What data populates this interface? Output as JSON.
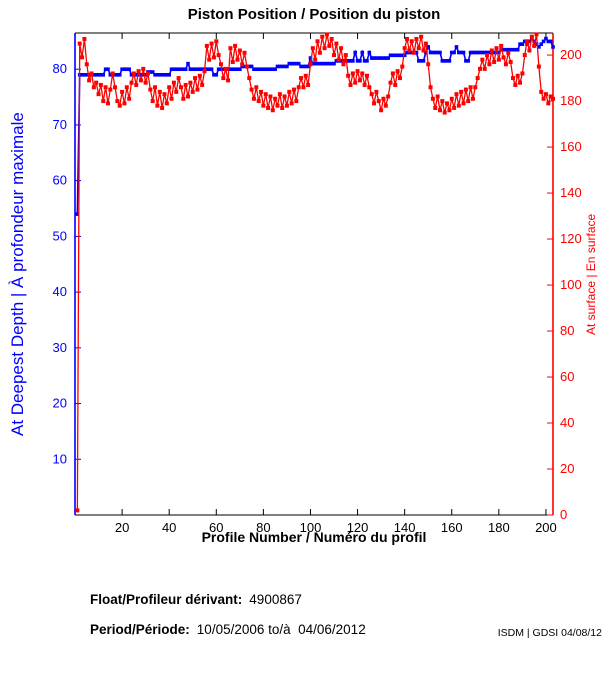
{
  "chart_data": {
    "type": "line",
    "title": "Piston Position / Position du piston",
    "x_axis": {
      "label": "Profile Number / Numéro du profil",
      "min": 0,
      "max": 203,
      "ticks": [
        20,
        40,
        60,
        80,
        100,
        120,
        140,
        160,
        180,
        200
      ]
    },
    "left_axis": {
      "label": "At Deepest Depth | À profondeur maximale",
      "color": "#0000ff",
      "min": 0,
      "max": 86.5,
      "ticks": [
        10,
        20,
        30,
        40,
        50,
        60,
        70,
        80
      ]
    },
    "right_axis": {
      "label": "At surface | En surface",
      "color": "#ff0000",
      "min": 0,
      "max": 209.6,
      "ticks": [
        0,
        20,
        40,
        60,
        80,
        100,
        120,
        140,
        160,
        180,
        200
      ]
    },
    "x_profiles": {
      "start": 1,
      "step": 1,
      "count": 203
    },
    "grid": false,
    "legend": "none",
    "series": [
      {
        "name": "At Deepest Depth | À profondeur maximale",
        "axis": "left",
        "color": "#0000ff",
        "line_width": 1.6,
        "marker_size": 3.6,
        "values": [
          54,
          79,
          79,
          79,
          79,
          79,
          79,
          79,
          79,
          79,
          79,
          79,
          80,
          80,
          79,
          79,
          79,
          79,
          79,
          80,
          80,
          80,
          80,
          79,
          79,
          79,
          79,
          79,
          79,
          79,
          79.5,
          79.5,
          79.5,
          79,
          79,
          79,
          79,
          79,
          79,
          79,
          80,
          80,
          80,
          80,
          80,
          80,
          80,
          81,
          80,
          80,
          80,
          80,
          80,
          80,
          80,
          80,
          80,
          80,
          79,
          79,
          80,
          80,
          80,
          80,
          80,
          80,
          80,
          80,
          80,
          80,
          80.5,
          80.5,
          80.5,
          80.5,
          80.5,
          80,
          80,
          80,
          80,
          80,
          80,
          80,
          80,
          80,
          80,
          80.5,
          80.5,
          80.5,
          80.5,
          80.5,
          81,
          81,
          81,
          81,
          81,
          80.5,
          80.5,
          80.5,
          80.5,
          82,
          81,
          81,
          81,
          81,
          81,
          81,
          81,
          81,
          81,
          81,
          81.5,
          81.5,
          81.5,
          81.5,
          81.5,
          81.5,
          81.5,
          81.5,
          83,
          81.5,
          81.5,
          83,
          81.5,
          81.5,
          83,
          82,
          82,
          82,
          82,
          82,
          82,
          82,
          82,
          82.5,
          82.5,
          82.5,
          82.5,
          82.5,
          82.5,
          82.5,
          83,
          83,
          83,
          83,
          83,
          81.5,
          81.5,
          81.5,
          83,
          84,
          83,
          83,
          83,
          83,
          83,
          81.5,
          81.5,
          81.5,
          81.5,
          83,
          83,
          84,
          83,
          83,
          83,
          81.5,
          81.5,
          83,
          83,
          83,
          83,
          83,
          83,
          83,
          83,
          83,
          83,
          83,
          83,
          83,
          83.5,
          83.5,
          83.5,
          83.5,
          83.5,
          83.5,
          83.5,
          83.5,
          84.5,
          84.5,
          85,
          84.5,
          85,
          85.5,
          85,
          84.5,
          84,
          84.5,
          85,
          85.5,
          85,
          85,
          84
        ]
      },
      {
        "name": "At surface | En surface",
        "axis": "right",
        "color": "#ff0000",
        "line_width": 1.3,
        "marker_size": 4,
        "values": [
          2,
          205,
          199,
          207,
          196,
          189,
          192,
          186,
          188,
          183,
          187,
          180,
          186,
          179,
          185,
          192,
          186,
          180,
          178,
          184,
          179,
          186,
          181,
          188,
          192,
          187,
          193,
          189,
          194,
          188,
          192,
          185,
          180,
          186,
          178,
          184,
          177,
          183,
          179,
          186,
          181,
          188,
          184,
          190,
          186,
          181,
          187,
          182,
          188,
          184,
          190,
          185,
          191,
          187,
          193,
          204,
          198,
          205,
          199,
          206,
          200,
          196,
          190,
          194,
          189,
          203,
          197,
          204,
          198,
          202,
          196,
          201,
          195,
          190,
          185,
          181,
          186,
          180,
          184,
          178,
          183,
          177,
          182,
          176,
          181,
          178,
          183,
          177,
          182,
          178,
          184,
          179,
          185,
          180,
          186,
          190,
          186,
          191,
          187,
          196,
          203,
          198,
          206,
          201,
          208,
          203,
          209,
          204,
          207,
          200,
          205,
          198,
          203,
          196,
          200,
          191,
          187,
          192,
          188,
          193,
          189,
          192,
          187,
          191,
          186,
          183,
          179,
          184,
          180,
          176,
          181,
          178,
          182,
          188,
          192,
          187,
          193,
          190,
          195,
          203,
          207,
          202,
          206,
          201,
          207,
          203,
          208,
          202,
          205,
          196,
          186,
          181,
          177,
          182,
          176,
          180,
          175,
          179,
          176,
          181,
          177,
          183,
          178,
          184,
          179,
          185,
          180,
          186,
          181,
          186,
          190,
          194,
          198,
          194,
          200,
          196,
          202,
          197,
          203,
          198,
          204,
          199,
          196,
          201,
          197,
          190,
          187,
          191,
          188,
          192,
          200,
          206,
          202,
          208,
          204,
          209,
          195,
          184,
          181,
          183,
          179,
          182,
          181
        ]
      }
    ]
  },
  "footer": {
    "float_label": "Float/Profileur dérivant:",
    "float_value": "4900867",
    "period_label": "Period/Période:",
    "period_value": "10/05/2006 to/à  04/06/2012",
    "stamp": "ISDM | GDSI 04/08/12"
  }
}
